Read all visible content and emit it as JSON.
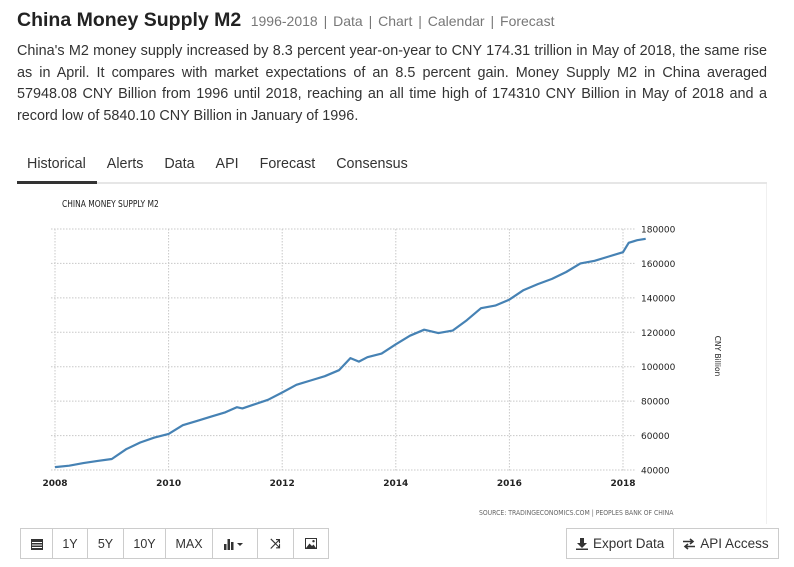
{
  "header": {
    "title": "China Money Supply M2",
    "range": "1996-2018",
    "links": [
      "Data",
      "Chart",
      "Calendar",
      "Forecast"
    ]
  },
  "description": "China's M2 money supply increased by 8.3 percent year-on-year to CNY 174.31 trillion in May of 2018, the same rise as in April. It compares with market expectations of an 8.5 percent gain. Money Supply M2 in China averaged 57948.08 CNY Billion from 1996 until 2018, reaching an all time high of 174310 CNY Billion in May of 2018 and a record low of 5840.10 CNY Billion in January of 1996.",
  "tabs": [
    {
      "label": "Historical",
      "active": true
    },
    {
      "label": "Alerts",
      "active": false
    },
    {
      "label": "Data",
      "active": false
    },
    {
      "label": "API",
      "active": false
    },
    {
      "label": "Forecast",
      "active": false
    },
    {
      "label": "Consensus",
      "active": false
    }
  ],
  "chart_data": {
    "type": "line",
    "title": "CHINA MONEY SUPPLY M2",
    "xlabel": "",
    "ylabel": "CNY Billion",
    "xlim": [
      2008,
      2018.4
    ],
    "ylim": [
      40000,
      180000
    ],
    "x_ticks": [
      "2008",
      "2010",
      "2012",
      "2014",
      "2016",
      "2018"
    ],
    "y_ticks": [
      "180000",
      "160000",
      "140000",
      "120000",
      "100000",
      "80000",
      "60000",
      "40000"
    ],
    "grid": true,
    "line_color": "#4682b4",
    "series": [
      {
        "name": "Money Supply M2",
        "x": [
          2008.0,
          2008.25,
          2008.5,
          2008.75,
          2009.0,
          2009.25,
          2009.5,
          2009.75,
          2010.0,
          2010.25,
          2010.5,
          2010.75,
          2011.0,
          2011.2,
          2011.3,
          2011.5,
          2011.75,
          2012.0,
          2012.25,
          2012.5,
          2012.75,
          2013.0,
          2013.2,
          2013.35,
          2013.5,
          2013.75,
          2014.0,
          2014.25,
          2014.5,
          2014.75,
          2015.0,
          2015.25,
          2015.5,
          2015.75,
          2016.0,
          2016.25,
          2016.5,
          2016.75,
          2017.0,
          2017.25,
          2017.5,
          2017.75,
          2018.0,
          2018.1,
          2018.25,
          2018.4
        ],
        "values": [
          41700,
          42500,
          44000,
          45300,
          46400,
          52000,
          56000,
          58800,
          61000,
          66000,
          68500,
          71000,
          73500,
          76500,
          75800,
          78000,
          80800,
          85000,
          89500,
          92000,
          94500,
          98000,
          105000,
          103000,
          105500,
          107600,
          113000,
          118000,
          121500,
          119500,
          121000,
          127000,
          134000,
          135500,
          139000,
          144500,
          148000,
          151000,
          155000,
          160000,
          161500,
          164000,
          166500,
          172000,
          173500,
          174300
        ]
      }
    ]
  },
  "source": "SOURCE: TRADINGECONOMICS.COM | PEOPLES BANK OF CHINA",
  "toolbar": {
    "buttons": [
      "1Y",
      "5Y",
      "10Y",
      "MAX"
    ],
    "icons": [
      "calendar-icon",
      "bar-chart-icon",
      "shuffle-icon",
      "image-icon"
    ]
  },
  "actions": {
    "export": "Export Data",
    "api": "API Access"
  }
}
